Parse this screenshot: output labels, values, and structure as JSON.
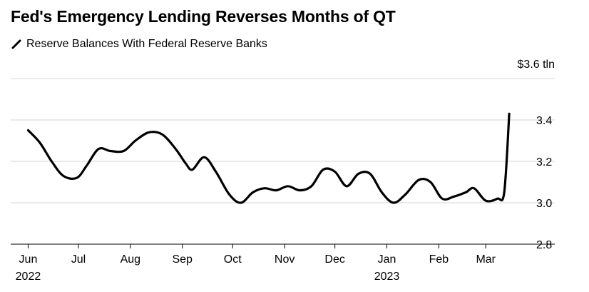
{
  "title": "Fed's Emergency Lending Reverses Months of QT",
  "colors": {
    "line": "#000000",
    "grid": "#d6d6d6",
    "axis": "#000000",
    "background": "#ffffff"
  },
  "chart_data": {
    "type": "line",
    "title": "Fed's Emergency Lending Reverses Months of QT",
    "series": [
      {
        "name": "Reserve Balances With Federal Reserve Banks",
        "points": [
          [
            "2022-06-01",
            3.35
          ],
          [
            "2022-06-08",
            3.29
          ],
          [
            "2022-06-15",
            3.2
          ],
          [
            "2022-06-22",
            3.13
          ],
          [
            "2022-06-30",
            3.12
          ],
          [
            "2022-07-06",
            3.18
          ],
          [
            "2022-07-13",
            3.26
          ],
          [
            "2022-07-20",
            3.25
          ],
          [
            "2022-07-28",
            3.25
          ],
          [
            "2022-08-04",
            3.3
          ],
          [
            "2022-08-12",
            3.34
          ],
          [
            "2022-08-20",
            3.33
          ],
          [
            "2022-08-28",
            3.26
          ],
          [
            "2022-09-03",
            3.19
          ],
          [
            "2022-09-07",
            3.16
          ],
          [
            "2022-09-14",
            3.22
          ],
          [
            "2022-09-21",
            3.15
          ],
          [
            "2022-09-29",
            3.04
          ],
          [
            "2022-10-06",
            3.0
          ],
          [
            "2022-10-13",
            3.05
          ],
          [
            "2022-10-20",
            3.07
          ],
          [
            "2022-10-27",
            3.06
          ],
          [
            "2022-11-03",
            3.08
          ],
          [
            "2022-11-10",
            3.06
          ],
          [
            "2022-11-17",
            3.08
          ],
          [
            "2022-11-24",
            3.16
          ],
          [
            "2022-12-01",
            3.15
          ],
          [
            "2022-12-08",
            3.08
          ],
          [
            "2022-12-15",
            3.14
          ],
          [
            "2022-12-22",
            3.14
          ],
          [
            "2022-12-29",
            3.05
          ],
          [
            "2023-01-05",
            3.0
          ],
          [
            "2023-01-12",
            3.04
          ],
          [
            "2023-01-20",
            3.11
          ],
          [
            "2023-01-27",
            3.1
          ],
          [
            "2023-02-03",
            3.02
          ],
          [
            "2023-02-10",
            3.03
          ],
          [
            "2023-02-17",
            3.05
          ],
          [
            "2023-02-22",
            3.07
          ],
          [
            "2023-03-01",
            3.01
          ],
          [
            "2023-03-08",
            3.02
          ],
          [
            "2023-03-12",
            3.05
          ],
          [
            "2023-03-15",
            3.43
          ]
        ]
      }
    ],
    "x_ticks": [
      {
        "date": "2022-06-01",
        "label": "Jun",
        "year": "2022"
      },
      {
        "date": "2022-07-01",
        "label": "Jul",
        "year": ""
      },
      {
        "date": "2022-08-01",
        "label": "Aug",
        "year": ""
      },
      {
        "date": "2022-09-01",
        "label": "Sep",
        "year": ""
      },
      {
        "date": "2022-10-01",
        "label": "Oct",
        "year": ""
      },
      {
        "date": "2022-11-01",
        "label": "Nov",
        "year": ""
      },
      {
        "date": "2022-12-01",
        "label": "Dec",
        "year": ""
      },
      {
        "date": "2023-01-01",
        "label": "Jan",
        "year": "2023"
      },
      {
        "date": "2023-02-01",
        "label": "Feb",
        "year": ""
      },
      {
        "date": "2023-03-01",
        "label": "Mar",
        "year": ""
      }
    ],
    "y_ticks": [
      {
        "value": 3.6,
        "label": "$3.6 tln"
      },
      {
        "value": 3.4,
        "label": "3.4"
      },
      {
        "value": 3.2,
        "label": "3.2"
      },
      {
        "value": 3.0,
        "label": "3.0"
      },
      {
        "value": 2.8,
        "label": "2.8"
      }
    ],
    "xlim": [
      "2022-05-25",
      "2023-03-26"
    ],
    "ylim": [
      2.8,
      3.6
    ],
    "y_axis_position": "right",
    "grid": true,
    "legend": "top-left"
  }
}
